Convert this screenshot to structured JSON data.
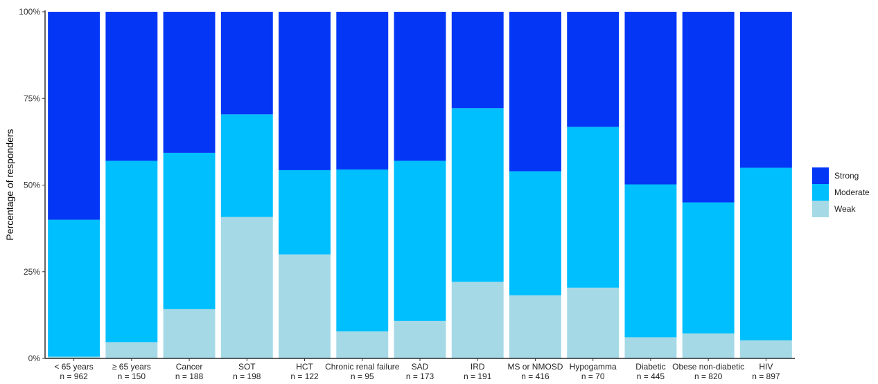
{
  "chart_data": {
    "type": "bar",
    "stacked": true,
    "title": "",
    "xlabel": "",
    "ylabel": "Percentage of responders",
    "ylim": [
      0,
      100
    ],
    "y_ticks": [
      "0%",
      "25%",
      "50%",
      "75%",
      "100%"
    ],
    "grid": false,
    "legend_position": "right",
    "categories": [
      "< 65 years",
      "≥ 65 years",
      "Cancer",
      "SOT",
      "HCT",
      "Chronic renal failure",
      "SAD",
      "IRD",
      "MS or NMOSD",
      "Hypogamma",
      "Diabetic",
      "Obese non-diabetic",
      "HIV"
    ],
    "n_labels": [
      "n = 962",
      "n = 150",
      "n = 188",
      "n = 198",
      "n = 122",
      "n = 95",
      "n = 173",
      "n = 191",
      "n = 416",
      "n = 70",
      "n = 445",
      "n = 820",
      "n = 897"
    ],
    "series": [
      {
        "name": "Weak",
        "color": "#a6d9e6",
        "values": [
          0.5,
          4.7,
          14.2,
          40.8,
          30.0,
          7.8,
          10.8,
          22.1,
          18.2,
          20.4,
          6.1,
          7.2,
          5.2
        ]
      },
      {
        "name": "Moderate",
        "color": "#00bfff",
        "values": [
          39.5,
          52.3,
          45.1,
          29.6,
          24.3,
          46.7,
          46.2,
          50.1,
          35.8,
          46.4,
          44.1,
          37.8,
          49.8
        ]
      },
      {
        "name": "Strong",
        "color": "#0336f5",
        "values": [
          60.0,
          43.0,
          40.7,
          29.6,
          45.7,
          45.5,
          43.0,
          27.8,
          46.0,
          33.2,
          49.8,
          55.0,
          45.0
        ]
      }
    ],
    "legend_order": [
      "Strong",
      "Moderate",
      "Weak"
    ]
  }
}
